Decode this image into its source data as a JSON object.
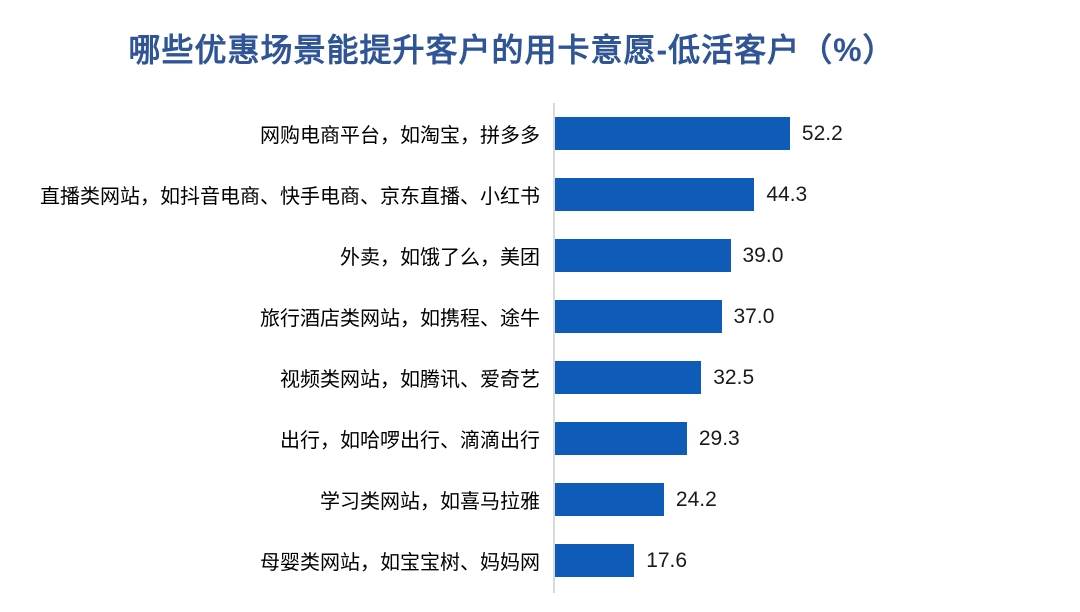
{
  "title": {
    "text": "哪些优惠场景能提升客户的用卡意愿-低活客户（%）",
    "color": "#2F5597"
  },
  "chart_data": {
    "type": "bar",
    "orientation": "horizontal",
    "title": "哪些优惠场景能提升客户的用卡意愿-低活客户（%）",
    "categories": [
      "网购电商平台，如淘宝，拼多多",
      "直播类网站，如抖音电商、快手电商、京东直播、小红书",
      "外卖，如饿了么，美团",
      "旅行酒店类网站，如携程、途牛",
      "视频类网站，如腾讯、爱奇艺",
      "出行，如哈啰出行、滴滴出行",
      "学习类网站，如喜马拉雅",
      "母婴类网站，如宝宝树、妈妈网"
    ],
    "values": [
      52.2,
      44.3,
      39.0,
      37.0,
      32.5,
      29.3,
      24.2,
      17.6
    ],
    "value_labels": [
      "52.2",
      "44.3",
      "39.0",
      "37.0",
      "32.5",
      "29.3",
      "24.2",
      "17.6"
    ],
    "xlabel": "",
    "ylabel": "",
    "xlim": [
      0,
      60
    ],
    "grid": false,
    "legend": false,
    "data_labels": "outside-end",
    "bar_color": "#0E5CB8",
    "axis_line_color": "#D9D9D9",
    "label_color": "#000000",
    "value_color": "#1A1A1A"
  }
}
